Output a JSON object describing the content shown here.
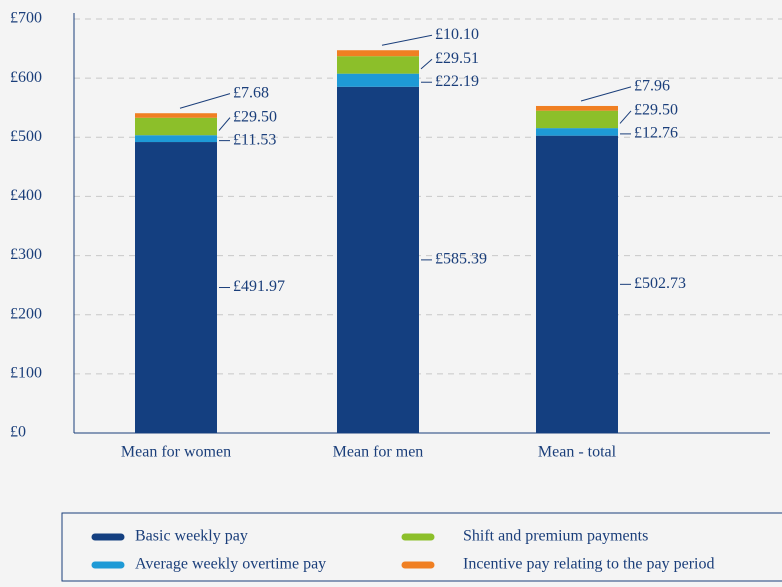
{
  "chart_data": {
    "type": "stacked_bar",
    "categories": [
      "Mean for women",
      "Mean for men",
      "Mean - total"
    ],
    "series": [
      {
        "name": "Basic weekly pay",
        "color": "#143f80",
        "values": [
          491.97,
          585.39,
          502.73
        ],
        "value_labels": [
          "£491.97",
          "£585.39",
          "£502.73"
        ]
      },
      {
        "name": "Average weekly overtime pay",
        "color": "#1e9ad6",
        "values": [
          11.53,
          22.19,
          12.76
        ],
        "value_labels": [
          "£11.53",
          "£22.19",
          "£12.76"
        ]
      },
      {
        "name": "Shift and premium payments",
        "color": "#8cbf2a",
        "values": [
          29.5,
          29.51,
          29.5
        ],
        "value_labels": [
          "£29.50",
          "£29.51",
          "£29.50"
        ]
      },
      {
        "name": "Incentive pay relating to the pay period",
        "color": "#f07f22",
        "values": [
          7.68,
          10.1,
          7.96
        ],
        "value_labels": [
          "£7.68",
          "£10.10",
          "£7.96"
        ]
      }
    ],
    "ylim": [
      0,
      700
    ],
    "yticks": [
      {
        "value": 0,
        "label": "£0"
      },
      {
        "value": 100,
        "label": "£100"
      },
      {
        "value": 200,
        "label": "£200"
      },
      {
        "value": 300,
        "label": "£300"
      },
      {
        "value": 400,
        "label": "£400"
      },
      {
        "value": 500,
        "label": "£500"
      },
      {
        "value": 600,
        "label": "£600"
      },
      {
        "value": 700,
        "label": "£700"
      }
    ],
    "grid": true
  }
}
